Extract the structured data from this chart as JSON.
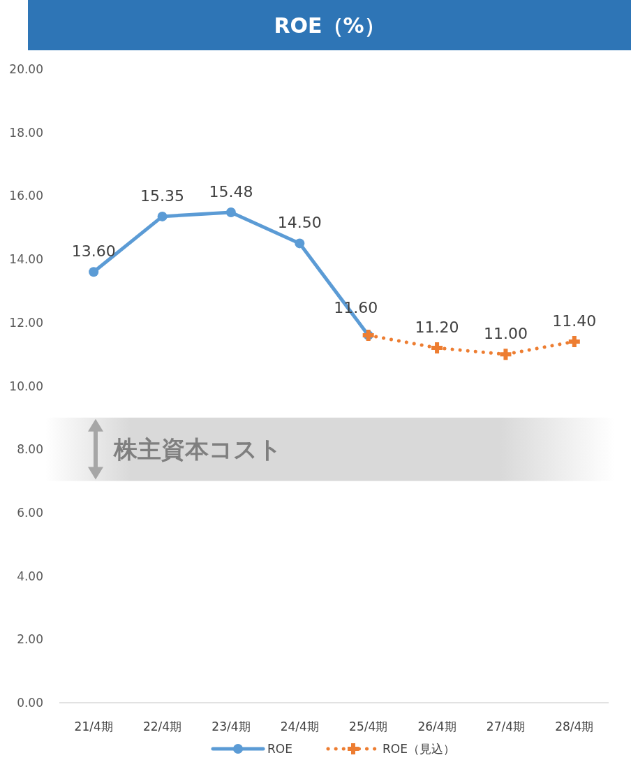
{
  "chart_data": {
    "type": "line",
    "title": "ROE（%）",
    "categories": [
      "21/4期",
      "22/4期",
      "23/4期",
      "24/4期",
      "25/4期",
      "26/4期",
      "27/4期",
      "28/4期"
    ],
    "ylim": [
      0,
      20
    ],
    "yticks": [
      {
        "value": 0,
        "label": "0.00"
      },
      {
        "value": 2,
        "label": "2.00"
      },
      {
        "value": 4,
        "label": "4.00"
      },
      {
        "value": 6,
        "label": "6.00"
      },
      {
        "value": 8,
        "label": "8.00"
      },
      {
        "value": 10,
        "label": "10.00"
      },
      {
        "value": 12,
        "label": "12.00"
      },
      {
        "value": 14,
        "label": "14.00"
      },
      {
        "value": 16,
        "label": "16.00"
      },
      {
        "value": 18,
        "label": "18.00"
      },
      {
        "value": 20,
        "label": "20.00"
      }
    ],
    "grid": false,
    "legend": "bottom",
    "series": [
      {
        "name": "ROE",
        "color": "#5b9bd5",
        "marker": "circle",
        "line_style": "solid",
        "values": [
          13.6,
          15.35,
          15.48,
          14.5,
          11.6,
          null,
          null,
          null
        ],
        "value_labels": [
          "13.60",
          "15.35",
          "15.48",
          "14.50",
          "11.60",
          null,
          null,
          null
        ]
      },
      {
        "name": "ROE（見込）",
        "color": "#ed7d31",
        "marker": "cross",
        "line_style": "dotted",
        "values": [
          null,
          null,
          null,
          null,
          11.6,
          11.2,
          11.0,
          11.4
        ],
        "value_labels": [
          null,
          null,
          null,
          null,
          null,
          "11.20",
          "11.00",
          "11.40"
        ]
      }
    ],
    "bands": [
      {
        "axis": "y",
        "from": 7,
        "to": 9,
        "label": "株主資本コスト",
        "color": "#d9d9d9"
      }
    ]
  }
}
